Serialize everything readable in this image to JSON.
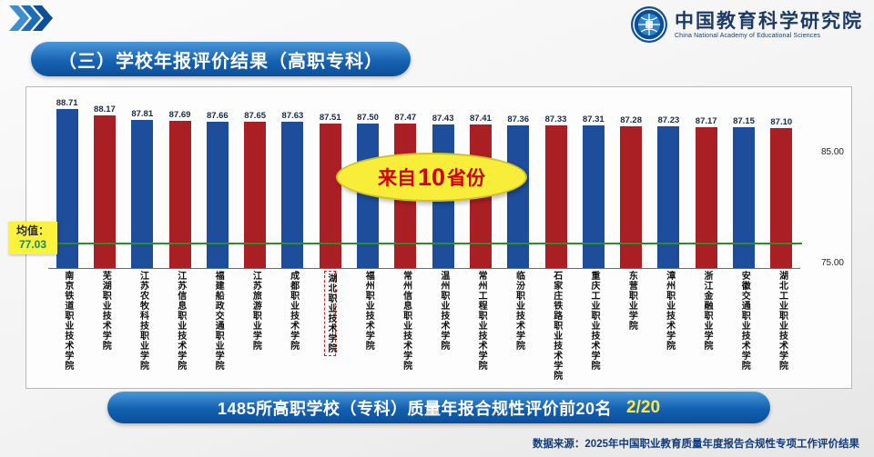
{
  "slide": {
    "header": {
      "title": "（三）学校年报评价结果（高职专科）",
      "org_name": "中国教育科学研究院",
      "org_name_en": "China National Academy of Educational Sciences"
    },
    "footer": {
      "banner_text": "1485所高职学校（专科）质量年报合规性评价前20名",
      "banner_page": "2/20",
      "source": "数据来源：2025年中国职业教育质量年度报告合规性专项工作评价结果"
    }
  },
  "chart_data": {
    "type": "bar",
    "title": "学校年报评价结果（高职专科）",
    "categories": [
      "南京铁道职业技术学院",
      "芜湖职业技术学院",
      "江苏农牧科技职业学院",
      "江苏信息职业技术学院",
      "福建船政交通职业学院",
      "江苏旅游职业学院",
      "成都职业技术学院",
      "湖北职业技术学院",
      "福州职业技术学院",
      "常州信息职业技术学院",
      "温州职业技术学院",
      "常州工程职业技术学院",
      "临汾职业技术学院",
      "石家庄铁路职业技术学院",
      "重庆工业职业技术学院",
      "东营职业学院",
      "漳州职业技术学院",
      "浙江金融职业学院",
      "安徽交通职业技术学院",
      "湖北工业职业技术学院"
    ],
    "values": [
      88.71,
      88.17,
      87.81,
      87.69,
      87.66,
      87.65,
      87.63,
      87.51,
      87.5,
      87.47,
      87.43,
      87.41,
      87.36,
      87.33,
      87.31,
      87.28,
      87.23,
      87.17,
      87.15,
      87.1
    ],
    "axis": {
      "min": 75,
      "max": 90,
      "ticks": [
        {
          "value": 85,
          "label": "85.00"
        },
        {
          "value": 75,
          "label": "75.00"
        }
      ]
    },
    "colors": {
      "bar_odd": "#1d4d9b",
      "bar_even": "#a91f24",
      "mean_line": "#2e8b2e"
    },
    "mean_line": {
      "value": 77.03,
      "label": "均值：",
      "value_label": "77.03"
    },
    "annotation": {
      "prefix": "来自",
      "number": "10",
      "suffix": "省份"
    },
    "highlight_index": 7,
    "grid": false,
    "legend": false,
    "ylabel": "",
    "xlabel": ""
  }
}
